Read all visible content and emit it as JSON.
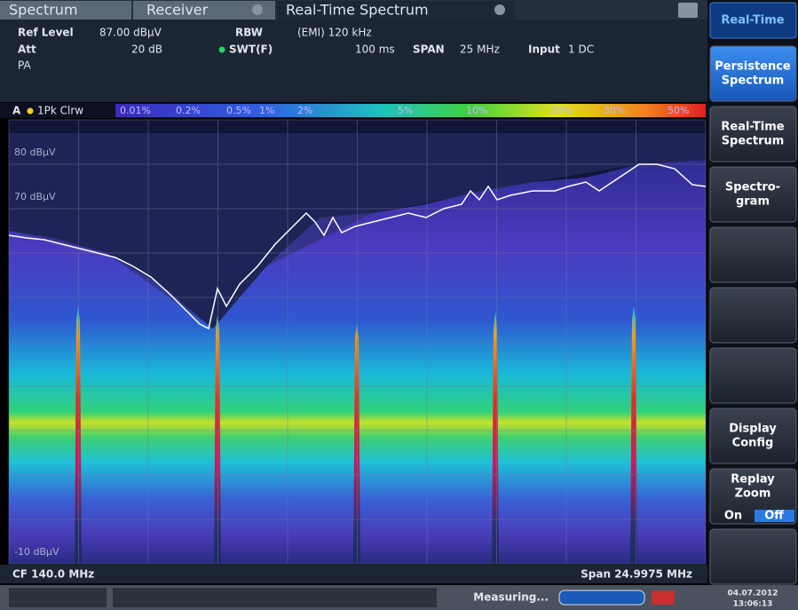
{
  "tabs": [
    {
      "label": "Spectrum"
    },
    {
      "label": "Receiver"
    },
    {
      "label": "Real-Time Spectrum"
    }
  ],
  "header": {
    "ref_level_label": "Ref Level",
    "ref_level": "87.00 dBµV",
    "rbw_label": "RBW",
    "rbw": "(EMI) 120 kHz",
    "att_label": "Att",
    "att": "20 dB",
    "swt_label": "SWT(F)",
    "swt": "100 ms",
    "span_label": "SPAN",
    "span": "25 MHz",
    "input_label": "Input",
    "input": "1 DC",
    "preamp": "PA"
  },
  "color_scale": {
    "window": "A",
    "trace": "1Pk Clrw",
    "labels": [
      "0.01%",
      "0.2%",
      "0.5%",
      "1%",
      "2%",
      "5%",
      "10%",
      "20%",
      "30%",
      "50%"
    ]
  },
  "plot": {
    "y_labels": [
      "80 dBµV",
      "70 dBµV",
      "-10 dBµV"
    ]
  },
  "footer": {
    "center": "CF 140.0 MHz",
    "span": "Span 24.9975 MHz"
  },
  "status": {
    "message": "Measuring...",
    "date": "04.07.2012",
    "time": "13:06:13"
  },
  "softkeys": {
    "title": "Real-Time",
    "keys": [
      {
        "lines": [
          "Persistence",
          "Spectrum"
        ]
      },
      {
        "lines": [
          "Real-Time",
          "Spectrum"
        ]
      },
      {
        "lines": [
          "Spectro-",
          "gram"
        ]
      },
      {
        "lines": [
          "Display",
          "Config"
        ]
      },
      {
        "lines": [
          "Replay",
          "Zoom"
        ]
      }
    ],
    "toggle": [
      "On",
      "Off"
    ]
  }
}
